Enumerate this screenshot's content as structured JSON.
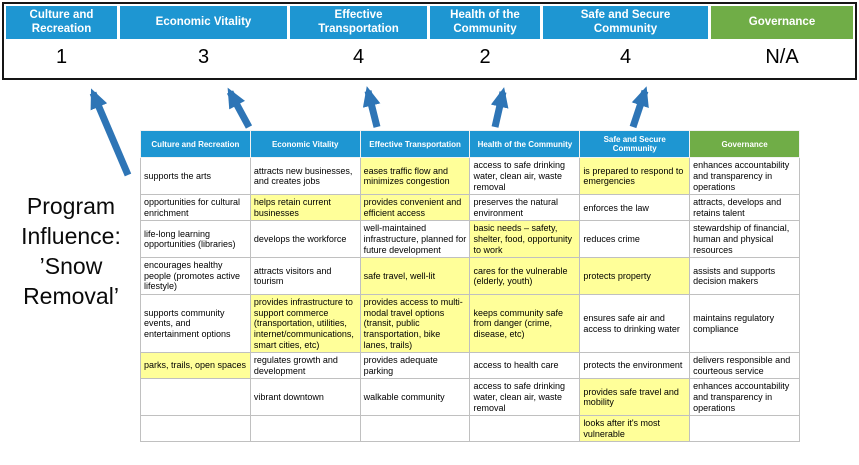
{
  "program_title": "Program Influence: ’Snow Removal’",
  "scorecard": {
    "columns": [
      {
        "label": "Culture and Recreation",
        "score": "1"
      },
      {
        "label": "Economic Vitality",
        "score": "3"
      },
      {
        "label": "Effective Transportation",
        "score": "4"
      },
      {
        "label": "Health of the Community",
        "score": "2"
      },
      {
        "label": "Safe and Secure Community",
        "score": "4"
      },
      {
        "label": "Governance",
        "score": "N/A"
      }
    ]
  },
  "matrix": {
    "headers": [
      "Culture and Recreation",
      "Economic Vitality",
      "Effective Transportation",
      "Health of the Community",
      "Safe and Secure Community",
      "Governance"
    ],
    "rows": [
      [
        {
          "text": "supports the arts",
          "highlight": false
        },
        {
          "text": "attracts new businesses, and creates jobs",
          "highlight": false
        },
        {
          "text": "eases traffic flow and minimizes congestion",
          "highlight": true
        },
        {
          "text": "access to safe drinking water, clean air, waste removal",
          "highlight": false
        },
        {
          "text": "is prepared to respond to emergencies",
          "highlight": true
        },
        {
          "text": "enhances accountability and transparency in operations",
          "highlight": false
        }
      ],
      [
        {
          "text": "opportunities for cultural enrichment",
          "highlight": false
        },
        {
          "text": "helps retain current businesses",
          "highlight": true
        },
        {
          "text": "provides convenient and efficient access",
          "highlight": true
        },
        {
          "text": "preserves the natural environment",
          "highlight": false
        },
        {
          "text": "enforces the law",
          "highlight": false
        },
        {
          "text": "attracts, develops and retains talent",
          "highlight": false
        }
      ],
      [
        {
          "text": "life-long learning opportunities (libraries)",
          "highlight": false
        },
        {
          "text": "develops the workforce",
          "highlight": false
        },
        {
          "text": "well-maintained infrastructure, planned for future development",
          "highlight": false
        },
        {
          "text": "basic needs – safety, shelter, food, opportunity to work",
          "highlight": true
        },
        {
          "text": "reduces crime",
          "highlight": false
        },
        {
          "text": "stewardship of financial, human and physical resources",
          "highlight": false
        }
      ],
      [
        {
          "text": "encourages healthy people (promotes active lifestyle)",
          "highlight": false
        },
        {
          "text": "attracts visitors and tourism",
          "highlight": false
        },
        {
          "text": "safe travel, well-lit",
          "highlight": true
        },
        {
          "text": "cares for the vulnerable (elderly, youth)",
          "highlight": true
        },
        {
          "text": "protects property",
          "highlight": true
        },
        {
          "text": "assists and supports decision makers",
          "highlight": false
        }
      ],
      [
        {
          "text": "supports community events, and entertainment options",
          "highlight": false
        },
        {
          "text": "provides infrastructure to support commerce (transportation, utilities, internet/communications, smart cities, etc)",
          "highlight": true
        },
        {
          "text": "provides access to multi-modal travel options (transit, public transportation, bike lanes, trails)",
          "highlight": true
        },
        {
          "text": "keeps community safe from danger (crime, disease, etc)",
          "highlight": true
        },
        {
          "text": "ensures safe air and access to drinking water",
          "highlight": false
        },
        {
          "text": "maintains regulatory compliance",
          "highlight": false
        }
      ],
      [
        {
          "text": "parks, trails, open spaces",
          "highlight": true
        },
        {
          "text": "regulates growth and development",
          "highlight": false
        },
        {
          "text": "provides adequate parking",
          "highlight": false
        },
        {
          "text": "access to health care",
          "highlight": false
        },
        {
          "text": "protects the environment",
          "highlight": false
        },
        {
          "text": "delivers responsible and courteous service",
          "highlight": false
        }
      ],
      [
        {
          "text": "",
          "highlight": false
        },
        {
          "text": "vibrant downtown",
          "highlight": false
        },
        {
          "text": "walkable community",
          "highlight": false
        },
        {
          "text": "access to safe drinking water, clean air, waste removal",
          "highlight": false
        },
        {
          "text": "provides safe travel and mobility",
          "highlight": true
        },
        {
          "text": "enhances accountability and transparency in operations",
          "highlight": false
        }
      ],
      [
        {
          "text": "",
          "highlight": false
        },
        {
          "text": "",
          "highlight": false
        },
        {
          "text": "",
          "highlight": false
        },
        {
          "text": "",
          "highlight": false
        },
        {
          "text": "looks after it's most vulnerable",
          "highlight": true
        },
        {
          "text": "",
          "highlight": false
        }
      ]
    ]
  },
  "colors": {
    "blue": "#1e96d2",
    "green": "#70ad47",
    "yellow": "#ffff99",
    "arrow": "#2e75b6"
  }
}
